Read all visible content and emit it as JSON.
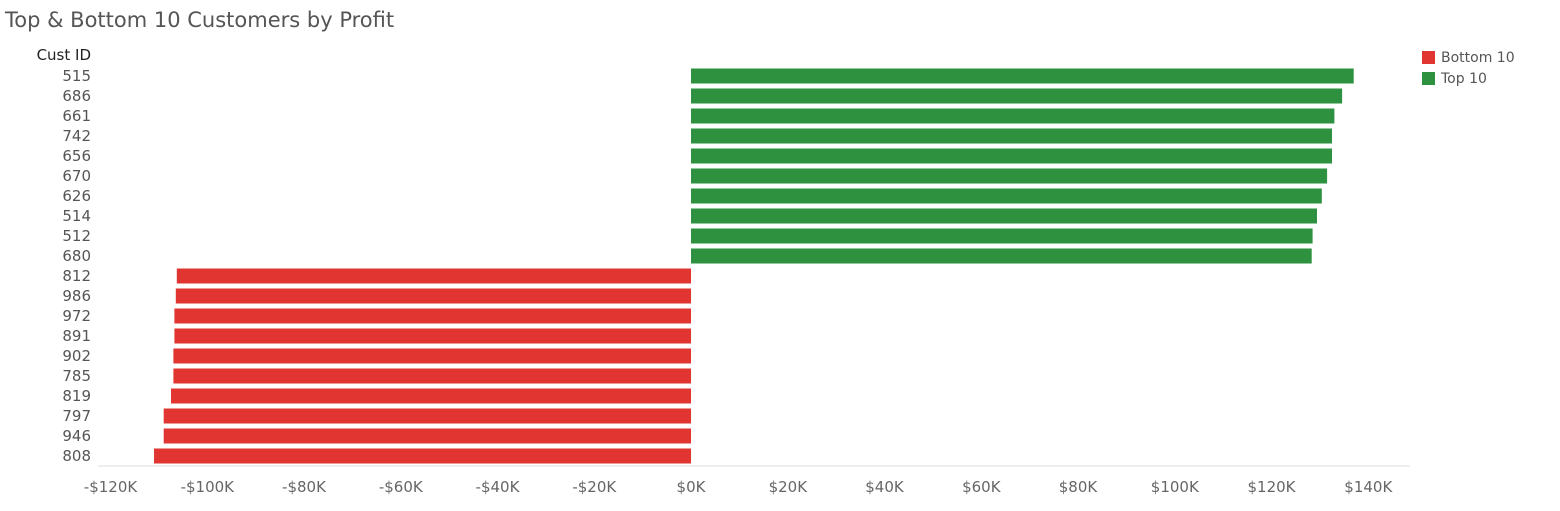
{
  "chart_data": {
    "type": "bar",
    "orientation": "horizontal",
    "title": "Top & Bottom 10 Customers by Profit",
    "y_header": "Cust ID",
    "xlim": [
      -120000,
      140000
    ],
    "x_ticks": [
      -120000,
      -100000,
      -80000,
      -60000,
      -40000,
      -20000,
      0,
      20000,
      40000,
      60000,
      80000,
      100000,
      120000,
      140000
    ],
    "x_tick_labels": [
      "-$120K",
      "-$100K",
      "-$80K",
      "-$60K",
      "-$40K",
      "-$20K",
      "$0K",
      "$20K",
      "$40K",
      "$60K",
      "$80K",
      "$100K",
      "$120K",
      "$140K"
    ],
    "grid": false,
    "legend_position": "top-right",
    "legend": [
      {
        "label": "Bottom 10",
        "color": "#e03531"
      },
      {
        "label": "Top 10",
        "color": "#2e9140"
      }
    ],
    "categories": [
      "515",
      "686",
      "661",
      "742",
      "656",
      "670",
      "626",
      "514",
      "512",
      "680",
      "812",
      "986",
      "972",
      "891",
      "902",
      "785",
      "819",
      "797",
      "946",
      "808"
    ],
    "values": [
      137000,
      134600,
      133000,
      132500,
      132500,
      131500,
      130400,
      129400,
      128500,
      128300,
      -106300,
      -106500,
      -106800,
      -106800,
      -107000,
      -107000,
      -107500,
      -109000,
      -109000,
      -111000
    ],
    "groups": [
      "Top 10",
      "Top 10",
      "Top 10",
      "Top 10",
      "Top 10",
      "Top 10",
      "Top 10",
      "Top 10",
      "Top 10",
      "Top 10",
      "Bottom 10",
      "Bottom 10",
      "Bottom 10",
      "Bottom 10",
      "Bottom 10",
      "Bottom 10",
      "Bottom 10",
      "Bottom 10",
      "Bottom 10",
      "Bottom 10"
    ]
  }
}
